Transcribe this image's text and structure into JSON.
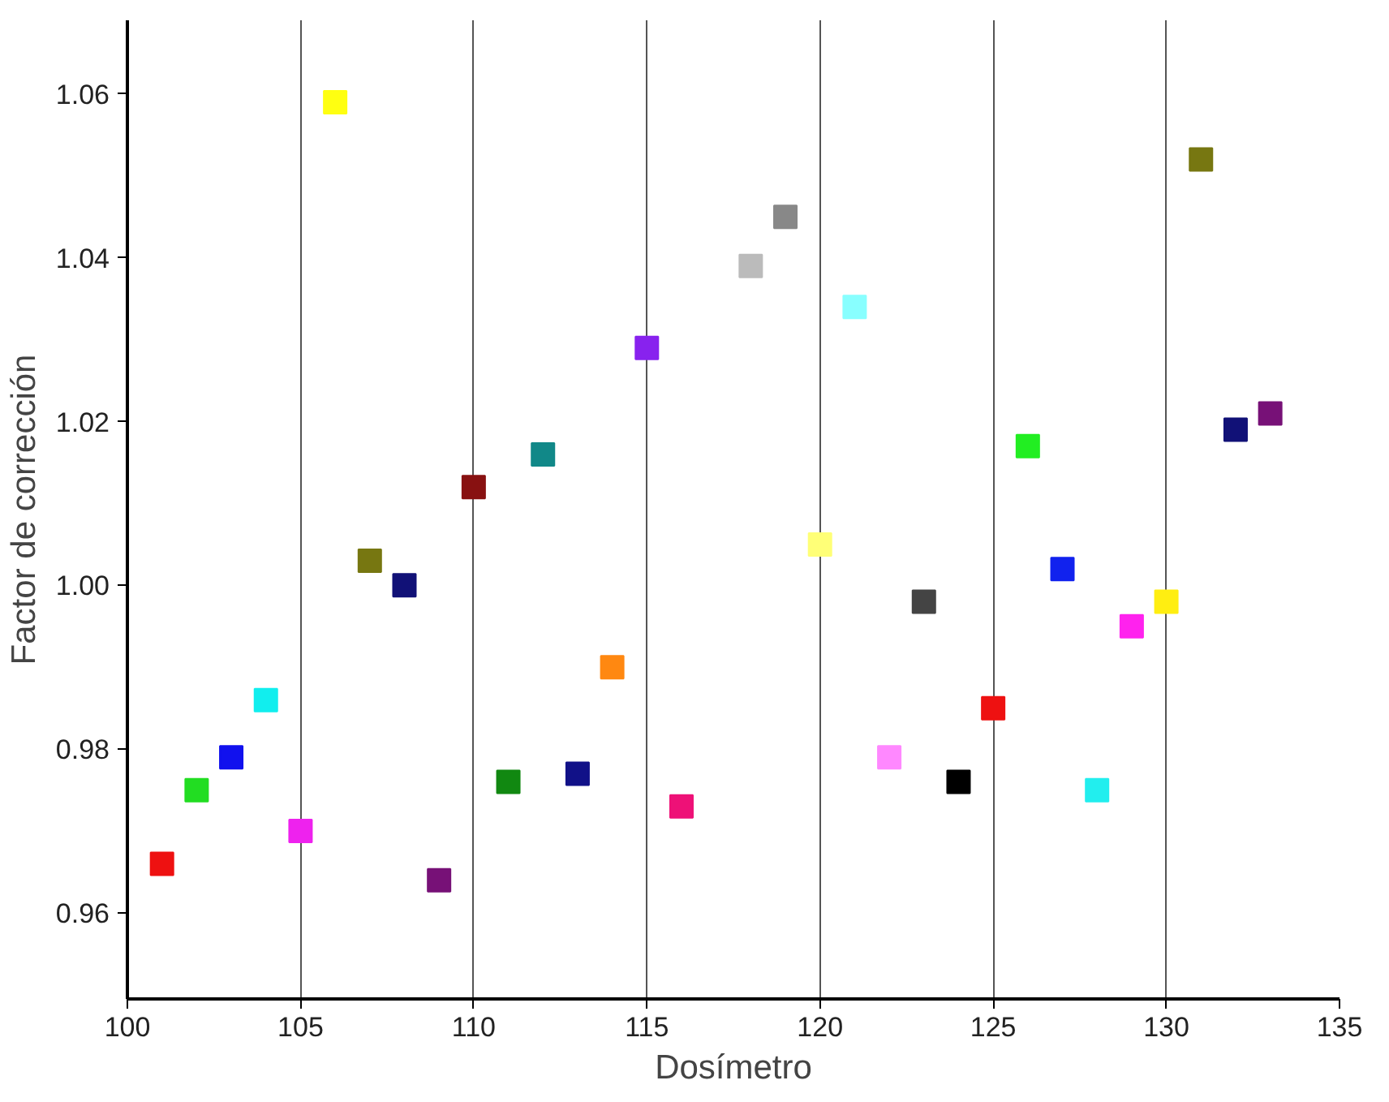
{
  "chart_data": {
    "type": "scatter",
    "xlabel": "Dosímetro",
    "ylabel": "Factor de corrección",
    "x": [
      101,
      102,
      103,
      104,
      105,
      106,
      107,
      108,
      109,
      110,
      111,
      112,
      113,
      114,
      115,
      116,
      118,
      119,
      120,
      121,
      122,
      123,
      124,
      125,
      126,
      127,
      128,
      129,
      130,
      131,
      132,
      133
    ],
    "values": [
      0.966,
      0.975,
      0.979,
      0.986,
      0.97,
      1.059,
      1.003,
      1.0,
      0.964,
      1.012,
      0.976,
      1.016,
      0.977,
      0.99,
      1.029,
      0.973,
      1.039,
      1.045,
      1.005,
      1.034,
      0.979,
      0.998,
      0.976,
      0.985,
      1.017,
      1.002,
      0.975,
      0.995,
      0.998,
      1.052,
      1.019,
      1.021
    ],
    "colors": [
      "#ee1111",
      "#22dd22",
      "#1111ee",
      "#11eeee",
      "#ee22ee",
      "#ffff11",
      "#777711",
      "#111177",
      "#771177",
      "#881111",
      "#118811",
      "#118888",
      "#111188",
      "#ff8811",
      "#8822ee",
      "#ee1177",
      "#bbbbbb",
      "#888888",
      "#ffff77",
      "#88ffff",
      "#ff88ff",
      "#444444",
      "#000000",
      "#ee1111",
      "#22ee22",
      "#1122ee",
      "#22eeee",
      "#ff22ee",
      "#ffee11",
      "#777711",
      "#111177",
      "#771177"
    ],
    "marker": "square",
    "grid": "x",
    "xlim": [
      100,
      135
    ],
    "xticks": [
      100,
      105,
      110,
      115,
      120,
      125,
      130,
      135
    ],
    "ylim": [
      0.9495,
      1.069
    ],
    "yticks": [
      {
        "value": 0.96,
        "label": "0.96"
      },
      {
        "value": 0.98,
        "label": "0.98"
      },
      {
        "value": 1.0,
        "label": "1.00"
      },
      {
        "value": 1.02,
        "label": "1.02"
      },
      {
        "value": 1.04,
        "label": "1.04"
      },
      {
        "value": 1.06,
        "label": "1.06"
      }
    ]
  }
}
